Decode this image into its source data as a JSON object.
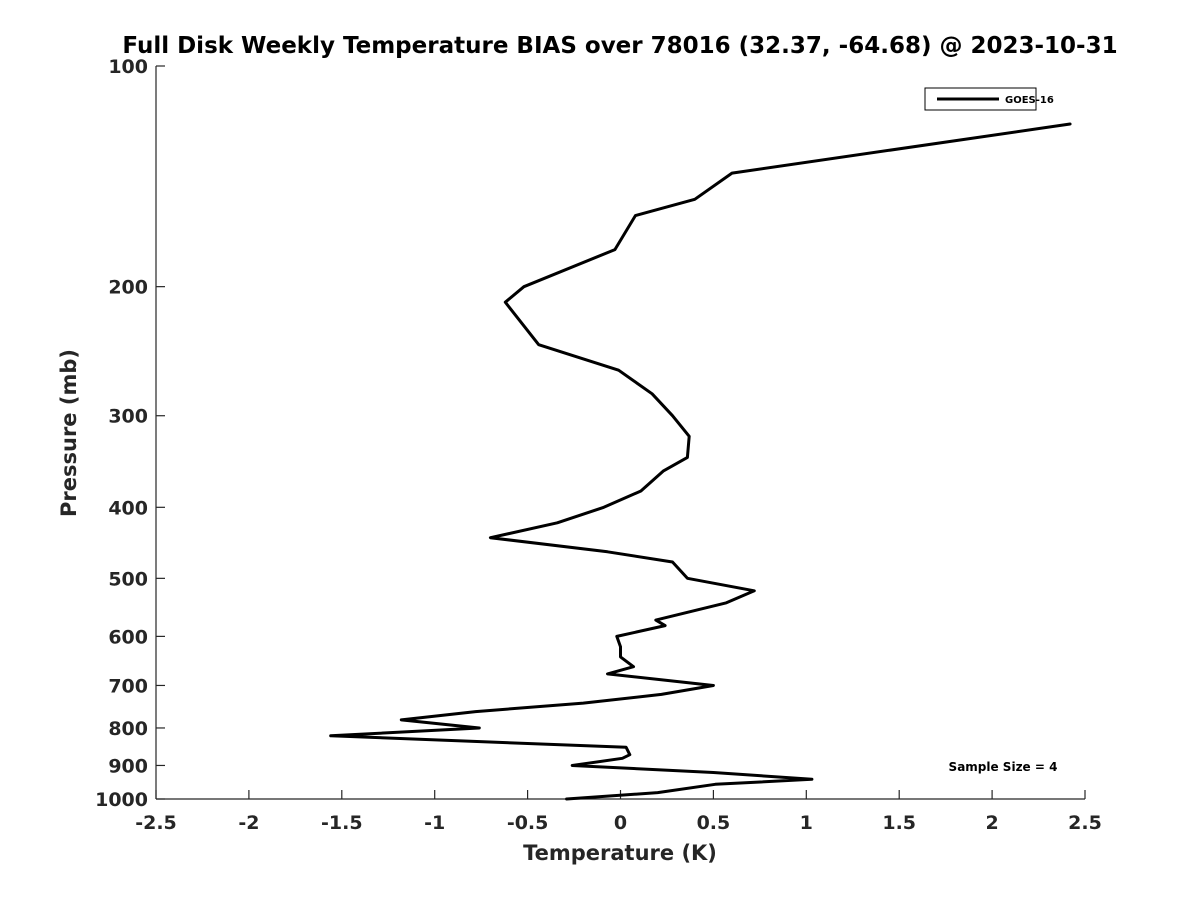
{
  "chart_data": {
    "type": "line",
    "title": "Full Disk Weekly Temperature BIAS over 78016 (32.37, -64.68) @ 2023-10-31",
    "xlabel": "Temperature (K)",
    "ylabel": "Pressure (mb)",
    "xlim": [
      -2.5,
      2.5
    ],
    "ylim": [
      100,
      1000
    ],
    "y_scale": "log",
    "y_direction": "reversed",
    "x_ticks": [
      "-2.5",
      "-2",
      "-1.5",
      "-1",
      "-0.5",
      "0",
      "0.5",
      "1",
      "1.5",
      "2",
      "2.5"
    ],
    "x_tick_values": [
      -2.5,
      -2,
      -1.5,
      -1,
      -0.5,
      0,
      0.5,
      1,
      1.5,
      2,
      2.5
    ],
    "y_ticks": [
      "100",
      "200",
      "300",
      "400",
      "500",
      "600",
      "700",
      "800",
      "900",
      "1000"
    ],
    "y_tick_values": [
      100,
      200,
      300,
      400,
      500,
      600,
      700,
      800,
      900,
      1000
    ],
    "grid": false,
    "legend_position": "top-right",
    "annotation": "Sample Size = 4",
    "line_color": "#000000",
    "series": [
      {
        "name": "GOES-16",
        "points": [
          {
            "x": 2.42,
            "p": 120
          },
          {
            "x": 0.6,
            "p": 140
          },
          {
            "x": 0.4,
            "p": 152
          },
          {
            "x": 0.08,
            "p": 160
          },
          {
            "x": -0.03,
            "p": 178
          },
          {
            "x": -0.52,
            "p": 200
          },
          {
            "x": -0.62,
            "p": 210
          },
          {
            "x": -0.44,
            "p": 240
          },
          {
            "x": -0.01,
            "p": 260
          },
          {
            "x": 0.17,
            "p": 280
          },
          {
            "x": 0.28,
            "p": 300
          },
          {
            "x": 0.37,
            "p": 320
          },
          {
            "x": 0.36,
            "p": 342
          },
          {
            "x": 0.23,
            "p": 357
          },
          {
            "x": 0.11,
            "p": 380
          },
          {
            "x": -0.09,
            "p": 400
          },
          {
            "x": -0.34,
            "p": 420
          },
          {
            "x": -0.7,
            "p": 440
          },
          {
            "x": -0.07,
            "p": 460
          },
          {
            "x": 0.28,
            "p": 475
          },
          {
            "x": 0.36,
            "p": 500
          },
          {
            "x": 0.72,
            "p": 520
          },
          {
            "x": 0.57,
            "p": 540
          },
          {
            "x": 0.19,
            "p": 570
          },
          {
            "x": 0.24,
            "p": 580
          },
          {
            "x": -0.02,
            "p": 600
          },
          {
            "x": 0.0,
            "p": 620
          },
          {
            "x": 0.0,
            "p": 640
          },
          {
            "x": 0.07,
            "p": 660
          },
          {
            "x": -0.07,
            "p": 675
          },
          {
            "x": 0.5,
            "p": 700
          },
          {
            "x": 0.22,
            "p": 720
          },
          {
            "x": -0.2,
            "p": 740
          },
          {
            "x": -0.78,
            "p": 760
          },
          {
            "x": -1.18,
            "p": 780
          },
          {
            "x": -0.76,
            "p": 800
          },
          {
            "x": -1.56,
            "p": 820
          },
          {
            "x": 0.03,
            "p": 850
          },
          {
            "x": 0.05,
            "p": 870
          },
          {
            "x": 0.01,
            "p": 880
          },
          {
            "x": -0.26,
            "p": 900
          },
          {
            "x": 0.5,
            "p": 920
          },
          {
            "x": 1.03,
            "p": 940
          },
          {
            "x": 0.51,
            "p": 955
          },
          {
            "x": 0.2,
            "p": 980
          },
          {
            "x": -0.29,
            "p": 1000
          }
        ]
      }
    ]
  }
}
